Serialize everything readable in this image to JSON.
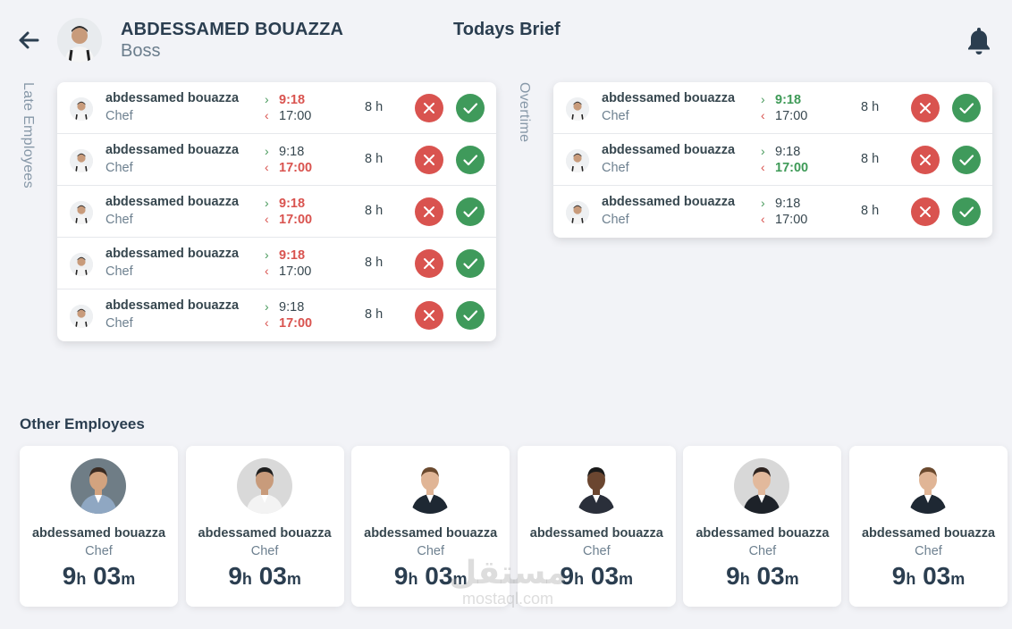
{
  "header": {
    "name": "ABDESSAMED BOUAZZA",
    "role": "Boss",
    "title": "Todays Brief"
  },
  "icons": {
    "back": "arrow-left-icon",
    "notifications": "bell-icon",
    "reject": "x-icon",
    "accept": "check-icon"
  },
  "colors": {
    "late": "#d9534f",
    "overtime": "#3e9a57",
    "reject": "#d9534f",
    "accept": "#3f9a5b"
  },
  "late_panel": {
    "label": "Late Employees",
    "rows": [
      {
        "name": "abdessamed bouazza",
        "role": "Chef",
        "time_in": "9:18",
        "time_out": "17:00",
        "hours": "8 h",
        "flag": "in"
      },
      {
        "name": "abdessamed bouazza",
        "role": "Chef",
        "time_in": "9:18",
        "time_out": "17:00",
        "hours": "8 h",
        "flag": "out"
      },
      {
        "name": "abdessamed bouazza",
        "role": "Chef",
        "time_in": "9:18",
        "time_out": "17:00",
        "hours": "8 h",
        "flag": "both"
      },
      {
        "name": "abdessamed bouazza",
        "role": "Chef",
        "time_in": "9:18",
        "time_out": "17:00",
        "hours": "8 h",
        "flag": "in"
      },
      {
        "name": "abdessamed bouazza",
        "role": "Chef",
        "time_in": "9:18",
        "time_out": "17:00",
        "hours": "8 h",
        "flag": "out"
      }
    ]
  },
  "overtime_panel": {
    "label": "Overtime",
    "rows": [
      {
        "name": "abdessamed bouazza",
        "role": "Chef",
        "time_in": "9:18",
        "time_out": "17:00",
        "hours": "8 h",
        "flag": "in"
      },
      {
        "name": "abdessamed bouazza",
        "role": "Chef",
        "time_in": "9:18",
        "time_out": "17:00",
        "hours": "8 h",
        "flag": "out"
      },
      {
        "name": "abdessamed bouazza",
        "role": "Chef",
        "time_in": "9:18",
        "time_out": "17:00",
        "hours": "8 h",
        "flag": "none"
      }
    ]
  },
  "other": {
    "title": "Other Employees",
    "cards": [
      {
        "name": "abdessamed bouazza",
        "role": "Chef",
        "hours": "9",
        "minutes": "03",
        "h_unit": "h",
        "m_unit": "m"
      },
      {
        "name": "abdessamed bouazza",
        "role": "Chef",
        "hours": "9",
        "minutes": "03",
        "h_unit": "h",
        "m_unit": "m"
      },
      {
        "name": "abdessamed bouazza",
        "role": "Chef",
        "hours": "9",
        "minutes": "03",
        "h_unit": "h",
        "m_unit": "m"
      },
      {
        "name": "abdessamed bouazza",
        "role": "Chef",
        "hours": "9",
        "minutes": "03",
        "h_unit": "h",
        "m_unit": "m"
      },
      {
        "name": "abdessamed bouazza",
        "role": "Chef",
        "hours": "9",
        "minutes": "03",
        "h_unit": "h",
        "m_unit": "m"
      },
      {
        "name": "abdessamed bouazza",
        "role": "Chef",
        "hours": "9",
        "minutes": "03",
        "h_unit": "h",
        "m_unit": "m"
      }
    ]
  },
  "watermark": {
    "line1": "مستقل",
    "line2": "mostaql.com"
  }
}
